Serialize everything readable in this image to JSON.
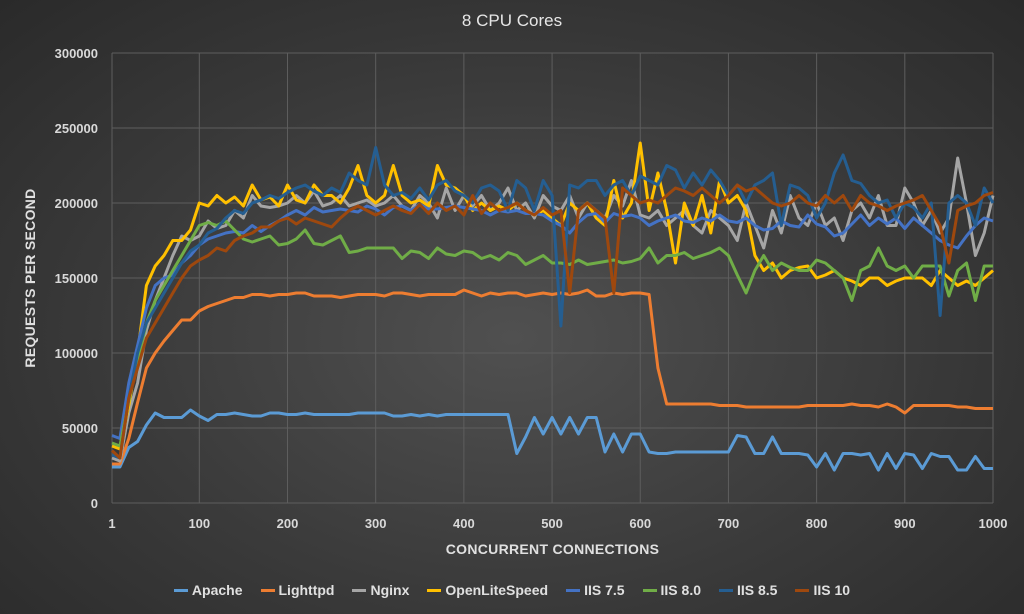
{
  "chart_data": {
    "type": "line",
    "title": "8 CPU Cores",
    "xlabel": "CONCURRENT CONNECTIONS",
    "ylabel": "REQUESTS PER SECOND",
    "ylim": [
      0,
      300000
    ],
    "xlim": [
      1,
      1000
    ],
    "y_ticks": [
      "0",
      "50000",
      "100000",
      "150000",
      "200000",
      "250000",
      "300000"
    ],
    "x_ticks": [
      "1",
      "100",
      "200",
      "300",
      "400",
      "500",
      "600",
      "700",
      "800",
      "900",
      "1000"
    ],
    "grid": true,
    "legend_position": "bottom",
    "x": [
      1,
      10,
      20,
      30,
      40,
      50,
      60,
      70,
      80,
      90,
      100,
      110,
      120,
      130,
      140,
      150,
      160,
      170,
      180,
      190,
      200,
      210,
      220,
      230,
      240,
      250,
      260,
      270,
      280,
      290,
      300,
      310,
      320,
      330,
      340,
      350,
      360,
      370,
      380,
      390,
      400,
      410,
      420,
      430,
      440,
      450,
      460,
      470,
      480,
      490,
      500,
      510,
      520,
      530,
      540,
      550,
      560,
      570,
      580,
      590,
      600,
      610,
      620,
      630,
      640,
      650,
      660,
      670,
      680,
      690,
      700,
      710,
      720,
      730,
      740,
      750,
      760,
      770,
      780,
      790,
      800,
      810,
      820,
      830,
      840,
      850,
      860,
      870,
      880,
      890,
      900,
      910,
      920,
      930,
      940,
      950,
      960,
      970,
      980,
      990,
      1000
    ],
    "series": [
      {
        "name": "Apache",
        "color": "#5b9bd5",
        "values": [
          24000,
          24000,
          37000,
          41000,
          52000,
          60000,
          57000,
          57000,
          57000,
          62000,
          58000,
          55000,
          59000,
          59000,
          60000,
          59000,
          58000,
          58000,
          60000,
          60000,
          59000,
          59000,
          60000,
          59000,
          59000,
          59000,
          59000,
          59000,
          60000,
          60000,
          60000,
          60000,
          58000,
          58000,
          59000,
          58000,
          59000,
          58000,
          59000,
          59000,
          59000,
          59000,
          59000,
          59000,
          59000,
          59000,
          33000,
          44000,
          57000,
          46000,
          57000,
          46000,
          57000,
          46000,
          57000,
          57000,
          34000,
          46000,
          34000,
          46000,
          46000,
          34000,
          33000,
          33000,
          34000,
          34000,
          34000,
          34000,
          34000,
          34000,
          34000,
          45000,
          44000,
          33000,
          33000,
          44000,
          33000,
          33000,
          33000,
          32000,
          24000,
          33000,
          22000,
          33000,
          33000,
          32000,
          33000,
          22000,
          33000,
          23000,
          33000,
          32000,
          23000,
          33000,
          31000,
          31000,
          22000,
          22000,
          31000,
          23000,
          23000
        ]
      },
      {
        "name": "Lighttpd",
        "color": "#ed7d31",
        "values": [
          26000,
          26000,
          43000,
          67000,
          90000,
          100000,
          108000,
          115000,
          122000,
          122000,
          128000,
          131000,
          133000,
          135000,
          137000,
          137000,
          139000,
          139000,
          138000,
          139000,
          139000,
          140000,
          140000,
          138000,
          138000,
          138000,
          137000,
          138000,
          139000,
          139000,
          139000,
          138000,
          140000,
          140000,
          139000,
          138000,
          139000,
          139000,
          139000,
          139000,
          142000,
          140000,
          138000,
          140000,
          139000,
          140000,
          140000,
          138000,
          139000,
          140000,
          139000,
          140000,
          139000,
          140000,
          142000,
          138000,
          138000,
          140000,
          139000,
          140000,
          140000,
          139000,
          90000,
          66000,
          66000,
          66000,
          66000,
          66000,
          66000,
          65000,
          65000,
          65000,
          64000,
          64000,
          64000,
          64000,
          64000,
          64000,
          64000,
          65000,
          65000,
          65000,
          65000,
          65000,
          66000,
          65000,
          65000,
          64000,
          66000,
          64000,
          60000,
          65000,
          65000,
          65000,
          65000,
          65000,
          64000,
          64000,
          63000,
          63000,
          63000
        ]
      },
      {
        "name": "Nginx",
        "color": "#a5a5a5",
        "values": [
          30000,
          28000,
          60000,
          80000,
          115000,
          135000,
          150000,
          165000,
          178000,
          175000,
          178000,
          188000,
          183000,
          185000,
          195000,
          190000,
          205000,
          198000,
          197000,
          198000,
          200000,
          205000,
          200000,
          208000,
          198000,
          200000,
          205000,
          198000,
          200000,
          202000,
          198000,
          200000,
          205000,
          198000,
          195000,
          205000,
          200000,
          190000,
          210000,
          195000,
          205000,
          198000,
          205000,
          195000,
          200000,
          210000,
          195000,
          200000,
          190000,
          205000,
          198000,
          195000,
          205000,
          190000,
          200000,
          195000,
          190000,
          205000,
          198000,
          215000,
          192000,
          190000,
          195000,
          185000,
          190000,
          195000,
          185000,
          180000,
          195000,
          190000,
          185000,
          175000,
          200000,
          185000,
          170000,
          195000,
          180000,
          205000,
          190000,
          185000,
          200000,
          185000,
          190000,
          175000,
          195000,
          200000,
          190000,
          205000,
          185000,
          185000,
          210000,
          200000,
          185000,
          195000,
          180000,
          190000,
          230000,
          200000,
          165000,
          180000,
          205000
        ]
      },
      {
        "name": "OpenLiteSpeed",
        "color": "#ffc000",
        "values": [
          38000,
          36000,
          65000,
          100000,
          145000,
          158000,
          165000,
          175000,
          175000,
          182000,
          200000,
          198000,
          205000,
          200000,
          204000,
          198000,
          212000,
          202000,
          204000,
          198000,
          212000,
          202000,
          200000,
          212000,
          205000,
          205000,
          200000,
          210000,
          225000,
          205000,
          200000,
          205000,
          225000,
          205000,
          200000,
          202000,
          198000,
          225000,
          212000,
          210000,
          205000,
          195000,
          200000,
          195000,
          198000,
          195000,
          200000,
          195000,
          192000,
          195000,
          190000,
          185000,
          200000,
          195000,
          200000,
          190000,
          185000,
          215000,
          190000,
          200000,
          240000,
          195000,
          220000,
          195000,
          160000,
          200000,
          185000,
          205000,
          180000,
          215000,
          200000,
          205000,
          195000,
          165000,
          155000,
          160000,
          150000,
          155000,
          157000,
          158000,
          150000,
          152000,
          155000,
          150000,
          148000,
          145000,
          150000,
          150000,
          145000,
          148000,
          150000,
          150000,
          150000,
          145000,
          155000,
          150000,
          145000,
          148000,
          145000,
          150000,
          155000
        ]
      },
      {
        "name": "IIS 7.5",
        "color": "#4472c4",
        "values": [
          45000,
          43000,
          80000,
          105000,
          130000,
          145000,
          150000,
          152000,
          160000,
          165000,
          172000,
          176000,
          178000,
          180000,
          181000,
          180000,
          185000,
          181000,
          185000,
          188000,
          192000,
          195000,
          192000,
          197000,
          194000,
          195000,
          196000,
          195000,
          194000,
          198000,
          196000,
          192000,
          197000,
          198000,
          195000,
          199000,
          196000,
          196000,
          197000,
          198000,
          197000,
          196000,
          195000,
          192000,
          195000,
          194000,
          195000,
          193000,
          193000,
          192000,
          188000,
          185000,
          180000,
          187000,
          192000,
          193000,
          187000,
          193000,
          191000,
          192000,
          190000,
          185000,
          188000,
          190000,
          192000,
          188000,
          187000,
          190000,
          188000,
          192000,
          188000,
          187000,
          190000,
          185000,
          182000,
          183000,
          188000,
          185000,
          184000,
          192000,
          186000,
          184000,
          178000,
          180000,
          186000,
          192000,
          185000,
          190000,
          186000,
          190000,
          183000,
          190000,
          185000,
          180000,
          175000,
          172000,
          170000,
          178000,
          185000,
          190000,
          188000
        ]
      },
      {
        "name": "IIS 8.0",
        "color": "#70ad47",
        "values": [
          40000,
          38000,
          68000,
          95000,
          120000,
          135000,
          145000,
          155000,
          165000,
          175000,
          185000,
          187000,
          185000,
          188000,
          182000,
          176000,
          174000,
          176000,
          178000,
          172000,
          173000,
          176000,
          182000,
          173000,
          172000,
          175000,
          178000,
          167000,
          168000,
          170000,
          170000,
          170000,
          170000,
          163000,
          168000,
          167000,
          163000,
          170000,
          166000,
          165000,
          168000,
          167000,
          163000,
          165000,
          162000,
          167000,
          165000,
          159000,
          162000,
          165000,
          160000,
          160000,
          159000,
          162000,
          159000,
          160000,
          161000,
          162000,
          160000,
          161000,
          163000,
          170000,
          160000,
          165000,
          165000,
          167000,
          163000,
          165000,
          167000,
          170000,
          165000,
          152000,
          140000,
          155000,
          165000,
          155000,
          160000,
          157000,
          155000,
          155000,
          162000,
          160000,
          155000,
          150000,
          135000,
          155000,
          158000,
          170000,
          158000,
          155000,
          158000,
          150000,
          158000,
          158000,
          158000,
          138000,
          155000,
          160000,
          135000,
          158000,
          158000
        ]
      },
      {
        "name": "IIS 8.5",
        "color": "#255e91",
        "values": [
          32000,
          30000,
          70000,
          100000,
          120000,
          130000,
          140000,
          150000,
          160000,
          168000,
          172000,
          180000,
          183000,
          190000,
          195000,
          193000,
          200000,
          202000,
          205000,
          203000,
          207000,
          210000,
          212000,
          208000,
          205000,
          210000,
          207000,
          220000,
          215000,
          212000,
          237000,
          212000,
          205000,
          207000,
          203000,
          210000,
          202000,
          212000,
          215000,
          208000,
          205000,
          200000,
          210000,
          212000,
          208000,
          195000,
          215000,
          210000,
          195000,
          215000,
          205000,
          118000,
          212000,
          210000,
          215000,
          215000,
          205000,
          212000,
          215000,
          205000,
          218000,
          215000,
          212000,
          225000,
          222000,
          210000,
          220000,
          212000,
          222000,
          215000,
          205000,
          212000,
          200000,
          212000,
          215000,
          220000,
          185000,
          212000,
          210000,
          205000,
          190000,
          200000,
          220000,
          232000,
          215000,
          213000,
          205000,
          200000,
          202000,
          190000,
          200000,
          197000,
          190000,
          200000,
          125000,
          200000,
          205000,
          200000,
          185000,
          210000,
          200000
        ]
      },
      {
        "name": "IIS 10",
        "color": "#9e480e",
        "values": [
          35000,
          30000,
          70000,
          90000,
          110000,
          120000,
          130000,
          140000,
          150000,
          158000,
          162000,
          165000,
          170000,
          168000,
          175000,
          178000,
          180000,
          184000,
          184000,
          188000,
          190000,
          186000,
          190000,
          188000,
          186000,
          184000,
          190000,
          195000,
          198000,
          195000,
          192000,
          195000,
          198000,
          195000,
          193000,
          199000,
          193000,
          200000,
          195000,
          198000,
          192000,
          205000,
          193000,
          200000,
          195000,
          197000,
          200000,
          195000,
          192000,
          197000,
          192000,
          195000,
          140000,
          195000,
          200000,
          195000,
          190000,
          140000,
          210000,
          205000,
          200000,
          202000,
          200000,
          205000,
          210000,
          208000,
          205000,
          210000,
          205000,
          200000,
          205000,
          212000,
          208000,
          210000,
          205000,
          200000,
          198000,
          200000,
          205000,
          200000,
          198000,
          205000,
          200000,
          205000,
          195000,
          205000,
          200000,
          198000,
          195000,
          198000,
          200000,
          202000,
          205000,
          195000,
          185000,
          160000,
          195000,
          198000,
          200000,
          205000,
          207000
        ]
      }
    ]
  }
}
